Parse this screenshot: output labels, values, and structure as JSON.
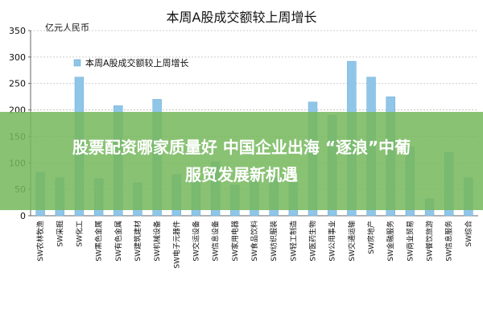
{
  "banner": {
    "line1": "股票配资哪家质量好 中国企业出海 “逐浪”中葡",
    "line2": "服贸发展新机遇"
  },
  "colors": {
    "bar": "#8fc6e8",
    "bar_stroke": "#6aa9d6",
    "axis": "#666666",
    "grid": "#bdbdbd",
    "banner": "#76b85c"
  },
  "chart_data": {
    "type": "bar",
    "title": "本周A股成交额较上周增长",
    "unit_label": "亿元人民币",
    "legend": [
      "本周A股成交额较上周增长"
    ],
    "legend_placement": "top-left",
    "grid": true,
    "ylim": [
      0,
      350
    ],
    "yticks": [
      0,
      50,
      100,
      150,
      200,
      250,
      300,
      350
    ],
    "categories": [
      "SW农林牧渔",
      "SW采掘",
      "SW化工",
      "SW黑色金属",
      "SW有色金属",
      "SW建筑建材",
      "SW机械设备",
      "SW电子元器件",
      "SW交运设备",
      "SW信息设备",
      "SW家用电器",
      "SW食品饮料",
      "SW纺织服装",
      "SW轻工制造",
      "SW医药生物",
      "SW公用事业",
      "SW交通运输",
      "SW房地产",
      "SW金融服务",
      "SW商业贸易",
      "SW餐饮旅游",
      "SW信息服务",
      "SW综合"
    ],
    "series": [
      {
        "name": "本周A股成交额较上周增长",
        "values": [
          82,
          72,
          262,
          70,
          208,
          62,
          220,
          78,
          70,
          102,
          58,
          80,
          72,
          66,
          215,
          190,
          292,
          262,
          225,
          130,
          32,
          120,
          72
        ]
      }
    ]
  }
}
